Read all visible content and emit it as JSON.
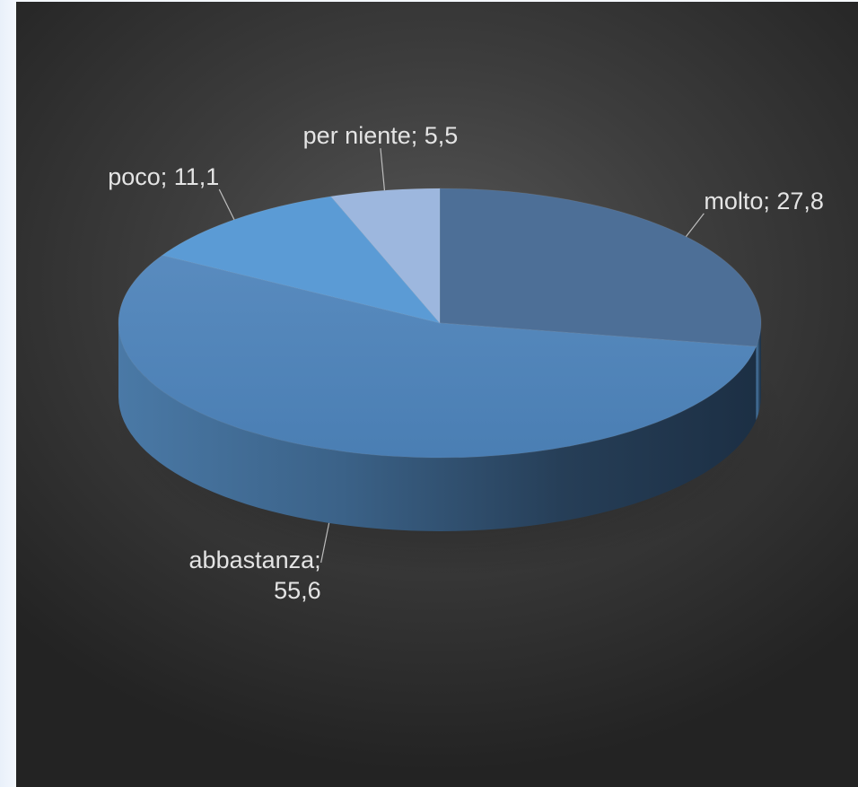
{
  "chart_data": {
    "type": "pie",
    "style": "3d",
    "categories": [
      "molto",
      "abbastanza",
      "poco",
      "per niente"
    ],
    "values": [
      27.8,
      55.6,
      11.1,
      5.5
    ],
    "data_labels": [
      "molto; 27,8",
      "abbastanza; 55,6",
      "poco; 11,1",
      "per niente; 5,5"
    ],
    "label_lines": {
      "abbastanza": [
        "abbastanza;",
        "55,6"
      ]
    },
    "colors": [
      "#4d6f97",
      "#4f86bd",
      "#5b9bd5",
      "#9db7de"
    ],
    "title": "",
    "legend": "none"
  }
}
